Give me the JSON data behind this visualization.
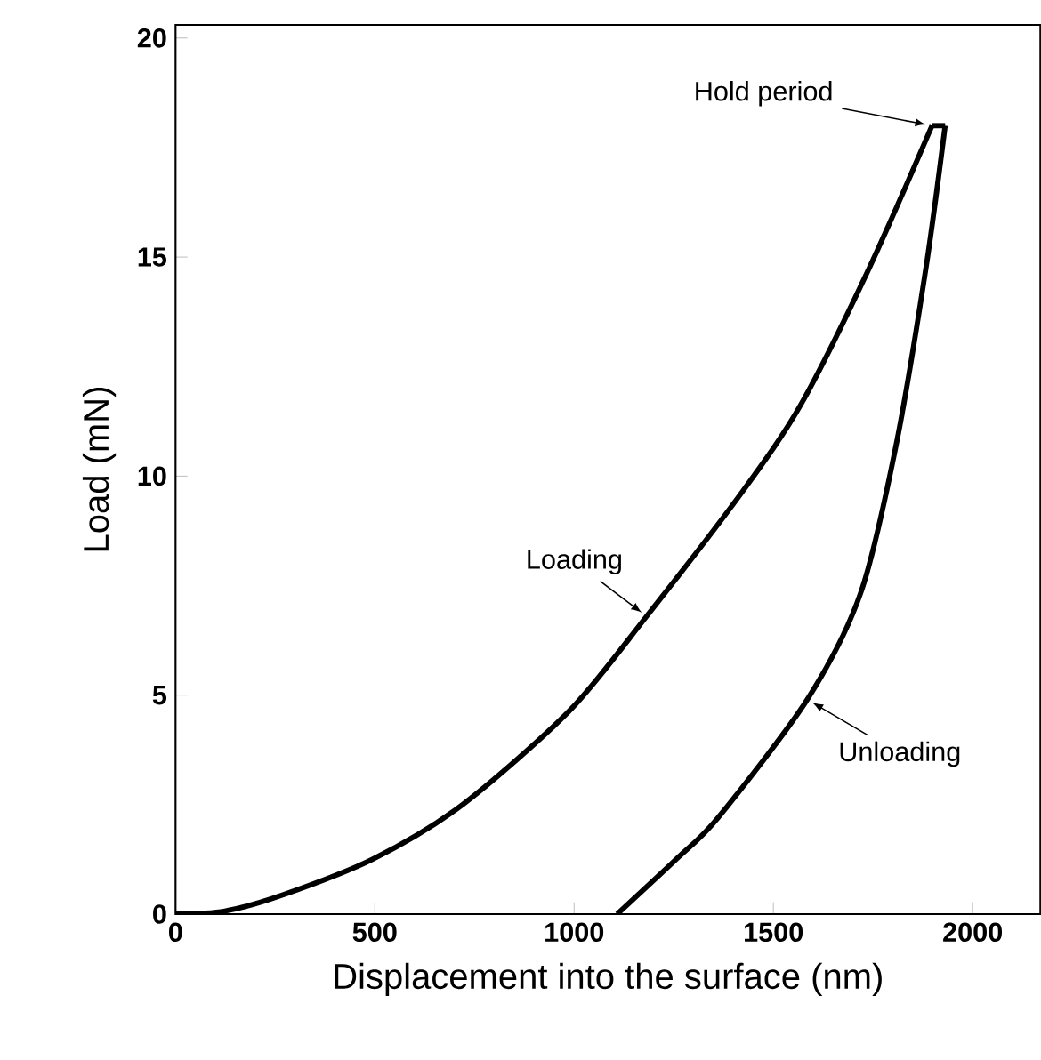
{
  "chart_data": {
    "type": "line",
    "xlabel": "Displacement into the surface (nm)",
    "ylabel": "Load (mN)",
    "xlim": [
      0,
      2170
    ],
    "ylim": [
      0,
      20.3
    ],
    "xticks": [
      0,
      500,
      1000,
      1500,
      2000
    ],
    "yticks": [
      0,
      5,
      10,
      15,
      20
    ],
    "series": [
      {
        "color": "#000000",
        "x": [
          0,
          124,
          273,
          496,
          720,
          988,
          1182,
          1421,
          1570,
          1741,
          1898
        ],
        "values": [
          0,
          0.07,
          0.45,
          1.26,
          2.5,
          4.64,
          6.8,
          9.63,
          11.65,
          14.76,
          18
        ]
      },
      {
        "color": "#000000",
        "x": [
          1898,
          1931
        ],
        "values": [
          18,
          18
        ]
      },
      {
        "color": "#000000",
        "x": [
          1931,
          1883,
          1808,
          1719,
          1585,
          1361,
          1257,
          1108
        ],
        "values": [
          18,
          14.76,
          10.71,
          7.33,
          4.9,
          2.2,
          1.26,
          0
        ]
      }
    ],
    "annotations": [
      {
        "text": "Hold period",
        "x": 1898,
        "y": 18
      },
      {
        "text": "Loading",
        "x": 1182,
        "y": 6.8
      },
      {
        "text": "Unloading",
        "x": 1585,
        "y": 4.9
      }
    ],
    "grid": false,
    "marker": "none",
    "line_style": "solid"
  }
}
